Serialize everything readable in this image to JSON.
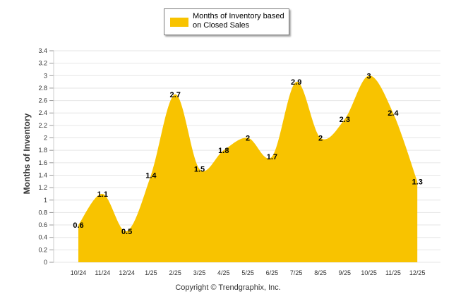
{
  "colors": {
    "fill": "#F8C300",
    "grid": "#e6e6e6",
    "axis_text": "#333333",
    "label_text": "#000000"
  },
  "legend": {
    "label": "Months of Inventory based on Closed Sales"
  },
  "copyright": "Copyright © Trendgraphix, Inc.",
  "chart_data": {
    "type": "area",
    "title": "",
    "xlabel": "",
    "ylabel": "Months of Inventory",
    "categories": [
      "10/24",
      "11/24",
      "12/24",
      "1/25",
      "2/25",
      "3/25",
      "4/25",
      "5/25",
      "6/25",
      "7/25",
      "8/25",
      "9/25",
      "10/25",
      "11/25",
      "12/25"
    ],
    "series": [
      {
        "name": "Months of Inventory based on Closed Sales",
        "values": [
          0.6,
          1.1,
          0.5,
          1.4,
          2.7,
          1.5,
          1.8,
          2,
          1.7,
          2.9,
          2,
          2.3,
          3,
          2.4,
          1.3
        ],
        "labels": [
          "0.6",
          "1.1",
          "0.5",
          "1.4",
          "2.7",
          "1.5",
          "1.8",
          "2",
          "1.7",
          "2.9",
          "2",
          "2.3",
          "3",
          "2.4",
          "1.3"
        ]
      }
    ],
    "ylim": [
      0,
      3.4
    ],
    "yticks": [
      "0",
      "0.2",
      "0.4",
      "0.6",
      "0.8",
      "1",
      "1.2",
      "1.4",
      "1.6",
      "1.8",
      "2",
      "2.2",
      "2.4",
      "2.6",
      "2.8",
      "3",
      "3.2",
      "3.4"
    ],
    "grid": true,
    "legend_position": "top-center"
  }
}
